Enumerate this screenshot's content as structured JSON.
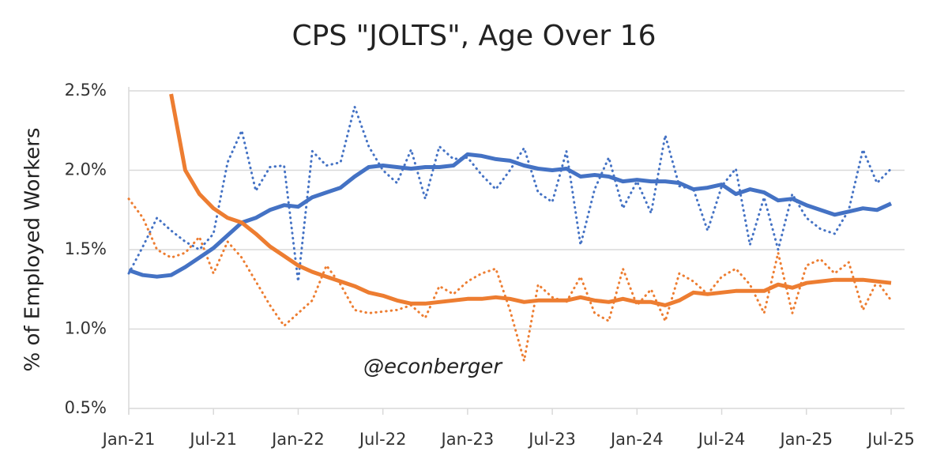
{
  "chart_data": {
    "type": "line",
    "title": "CPS \"JOLTS\", Age Over 16",
    "y_label": "% of Employed Workers",
    "annotation": "@econberger",
    "categories": [
      "Jan-21",
      null,
      null,
      null,
      null,
      null,
      "Jul-21",
      null,
      null,
      null,
      null,
      null,
      "Jan-22",
      null,
      null,
      null,
      null,
      null,
      "Jul-22",
      null,
      null,
      null,
      null,
      null,
      "Jan-23",
      null,
      null,
      null,
      null,
      null,
      "Jul-23",
      null,
      null,
      null,
      null,
      null,
      "Jan-24",
      null,
      null,
      null,
      null,
      null,
      "Jul-24",
      null,
      null,
      null,
      null,
      null,
      "Jan-25",
      null,
      null,
      null,
      null,
      null,
      "Jul-25"
    ],
    "ylim": [
      0.5,
      2.5
    ],
    "yticks": [
      {
        "value": 0.5,
        "label": "0.5%"
      },
      {
        "value": 1.0,
        "label": "1.0%"
      },
      {
        "value": 1.5,
        "label": "1.5%"
      },
      {
        "value": 2.0,
        "label": "2.0%"
      },
      {
        "value": 2.5,
        "label": "2.5%"
      }
    ],
    "grid": true,
    "series": [
      {
        "color": "#4472c4",
        "style": "solid",
        "values": [
          1.37,
          1.34,
          1.33,
          1.34,
          1.39,
          1.45,
          1.51,
          1.59,
          1.67,
          1.7,
          1.75,
          1.78,
          1.77,
          1.83,
          1.86,
          1.89,
          1.96,
          2.02,
          2.03,
          2.02,
          2.01,
          2.02,
          2.02,
          2.03,
          2.1,
          2.09,
          2.07,
          2.06,
          2.03,
          2.01,
          2.0,
          2.01,
          1.96,
          1.97,
          1.96,
          1.93,
          1.94,
          1.93,
          1.93,
          1.92,
          1.88,
          1.89,
          1.91,
          1.85,
          1.88,
          1.86,
          1.81,
          1.82,
          1.78,
          1.75,
          1.72,
          1.74,
          1.76,
          1.75,
          1.79
        ]
      },
      {
        "color": "#4472c4",
        "style": "dotted",
        "values": [
          1.35,
          1.52,
          1.7,
          1.62,
          1.55,
          1.5,
          1.6,
          2.05,
          2.25,
          1.87,
          2.02,
          2.03,
          1.3,
          2.12,
          2.03,
          2.05,
          2.4,
          2.15,
          2.0,
          1.92,
          2.13,
          1.82,
          2.15,
          2.07,
          2.08,
          1.97,
          1.88,
          2.0,
          2.14,
          1.86,
          1.8,
          2.12,
          1.53,
          1.88,
          2.08,
          1.76,
          1.93,
          1.73,
          2.22,
          1.9,
          1.88,
          1.62,
          1.9,
          2.01,
          1.53,
          1.83,
          1.5,
          1.85,
          1.7,
          1.63,
          1.6,
          1.75,
          2.13,
          1.92,
          2.01
        ]
      },
      {
        "color": "#ed7d31",
        "style": "solid",
        "values": [
          null,
          null,
          null,
          2.48,
          2.0,
          1.85,
          1.76,
          1.7,
          1.67,
          1.6,
          1.52,
          1.46,
          1.4,
          1.36,
          1.33,
          1.3,
          1.27,
          1.23,
          1.21,
          1.18,
          1.16,
          1.16,
          1.17,
          1.18,
          1.19,
          1.19,
          1.2,
          1.19,
          1.17,
          1.18,
          1.18,
          1.18,
          1.2,
          1.18,
          1.17,
          1.19,
          1.17,
          1.17,
          1.15,
          1.18,
          1.23,
          1.22,
          1.23,
          1.24,
          1.24,
          1.24,
          1.28,
          1.26,
          1.29,
          1.3,
          1.31,
          1.31,
          1.31,
          1.3,
          1.29
        ]
      },
      {
        "color": "#ed7d31",
        "style": "dotted",
        "values": [
          1.82,
          1.7,
          1.5,
          1.45,
          1.48,
          1.58,
          1.35,
          1.55,
          1.45,
          1.3,
          1.15,
          1.02,
          1.1,
          1.18,
          1.4,
          1.28,
          1.12,
          1.1,
          1.11,
          1.12,
          1.15,
          1.07,
          1.27,
          1.22,
          1.3,
          1.35,
          1.38,
          1.12,
          0.8,
          1.28,
          1.2,
          1.17,
          1.33,
          1.1,
          1.05,
          1.38,
          1.15,
          1.25,
          1.05,
          1.35,
          1.3,
          1.22,
          1.33,
          1.38,
          1.28,
          1.1,
          1.48,
          1.1,
          1.4,
          1.44,
          1.35,
          1.42,
          1.12,
          1.3,
          1.18
        ]
      }
    ]
  }
}
